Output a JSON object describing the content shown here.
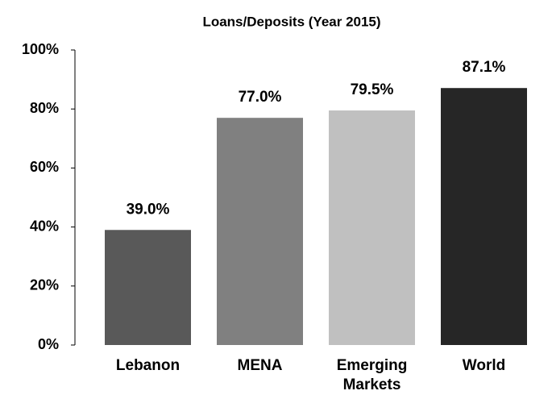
{
  "chart_data": {
    "type": "bar",
    "title": "Loans/Deposits (Year 2015)",
    "categories": [
      "Lebanon",
      "MENA",
      "Emerging Markets",
      "World"
    ],
    "values": [
      39.0,
      77.0,
      79.5,
      87.1
    ],
    "value_labels": [
      "39.0%",
      "77.0%",
      "79.5%",
      "87.1%"
    ],
    "colors": [
      "#595959",
      "#808080",
      "#c0c0c0",
      "#262626"
    ],
    "ylim": [
      0,
      100
    ],
    "yticks": [
      {
        "value": 0,
        "label": "0%"
      },
      {
        "value": 20,
        "label": "20%"
      },
      {
        "value": 40,
        "label": "40%"
      },
      {
        "value": 60,
        "label": "60%"
      },
      {
        "value": 80,
        "label": "80%"
      },
      {
        "value": 100,
        "label": "100%"
      }
    ],
    "grid": false
  }
}
